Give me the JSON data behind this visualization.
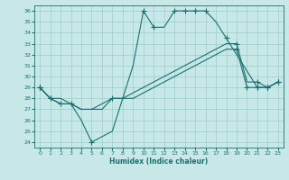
{
  "xlabel": "Humidex (Indice chaleur)",
  "xlim": [
    -0.5,
    23.5
  ],
  "ylim": [
    23.5,
    36.5
  ],
  "yticks": [
    24,
    25,
    26,
    27,
    28,
    29,
    30,
    31,
    32,
    33,
    34,
    35,
    36
  ],
  "xticks": [
    0,
    1,
    2,
    3,
    4,
    5,
    6,
    7,
    8,
    9,
    10,
    11,
    12,
    13,
    14,
    15,
    16,
    17,
    18,
    19,
    20,
    21,
    22,
    23
  ],
  "bg_color": "#c8e8e8",
  "line_color": "#1a7070",
  "line1_x": [
    0,
    1,
    2,
    3,
    4,
    5,
    6,
    7,
    8,
    9,
    10,
    11,
    12,
    13,
    14,
    15,
    16,
    17,
    18,
    21,
    22,
    23
  ],
  "line1_y": [
    29,
    28,
    28,
    27.5,
    26,
    24,
    24.5,
    25,
    28,
    31,
    36,
    34.5,
    34.5,
    36,
    36,
    36,
    36,
    35,
    33.5,
    29,
    29,
    29.5
  ],
  "line1_markers_x": [
    0,
    1,
    5,
    10,
    11,
    13,
    14,
    15,
    16,
    18,
    21,
    22,
    23
  ],
  "line1_markers_y": [
    29,
    28,
    24,
    36,
    34.5,
    36,
    36,
    36,
    36,
    33.5,
    29,
    29,
    29.5
  ],
  "line2_x": [
    0,
    1,
    2,
    3,
    4,
    5,
    6,
    7,
    8,
    9,
    10,
    11,
    12,
    13,
    14,
    15,
    16,
    17,
    18,
    19,
    20,
    21,
    22,
    23
  ],
  "line2_y": [
    29,
    28,
    27.5,
    27.5,
    27,
    27,
    27,
    28,
    28,
    28,
    28.5,
    29,
    29.5,
    30,
    30.5,
    31,
    31.5,
    32,
    32.5,
    32.5,
    29,
    29,
    29,
    29.5
  ],
  "line2_markers_x": [
    0,
    1,
    2,
    3,
    19,
    20,
    21,
    22,
    23
  ],
  "line2_markers_y": [
    29,
    28,
    27.5,
    27.5,
    32.5,
    29,
    29,
    29,
    29.5
  ],
  "line3_x": [
    0,
    1,
    2,
    3,
    4,
    5,
    6,
    7,
    8,
    9,
    10,
    11,
    12,
    13,
    14,
    15,
    16,
    17,
    18,
    19,
    20,
    21,
    22,
    23
  ],
  "line3_y": [
    29,
    28,
    27.5,
    27.5,
    27,
    27,
    27.5,
    28,
    28,
    28.5,
    29,
    29.5,
    30,
    30.5,
    31,
    31.5,
    32,
    32.5,
    33,
    33,
    29.5,
    29.5,
    29,
    29.5
  ],
  "line3_markers_x": [
    0,
    7,
    19,
    21,
    22,
    23
  ],
  "line3_markers_y": [
    29,
    28,
    33,
    29.5,
    29,
    29.5
  ]
}
